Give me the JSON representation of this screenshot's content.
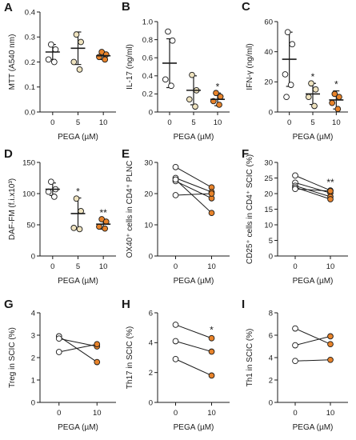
{
  "colors": {
    "c0": "#ffffff",
    "c5": "#efe3bf",
    "c10": "#e8832a",
    "stroke": "#1a1a1a"
  },
  "chart_data": [
    {
      "id": "A",
      "type": "scatter",
      "label": "A",
      "ylabel": "MTT (A540 nm)",
      "xlabel": "PEGA (µM)",
      "categories": [
        "0",
        "5",
        "10"
      ],
      "ylim": [
        0,
        0.4
      ],
      "yticks": [
        0,
        0.1,
        0.2,
        0.3,
        0.4
      ],
      "yticklabels": [
        "0.0",
        "0.1",
        "0.2",
        "0.3",
        "0.4"
      ],
      "groups": [
        {
          "x": "0",
          "mean": 0.24,
          "sd": 0.03,
          "points": [
            0.27,
            0.25,
            0.21,
            0.2
          ]
        },
        {
          "x": "5",
          "mean": 0.255,
          "sd": 0.065,
          "points": [
            0.31,
            0.28,
            0.2,
            0.17
          ]
        },
        {
          "x": "10",
          "mean": 0.225,
          "sd": 0.015,
          "points": [
            0.24,
            0.23,
            0.22,
            0.21
          ]
        }
      ],
      "stars": [
        "",
        "",
        ""
      ]
    },
    {
      "id": "B",
      "type": "scatter",
      "label": "B",
      "ylabel": "IL-17 (ng/ml)",
      "xlabel": "PEGA (µM)",
      "categories": [
        "0",
        "5",
        "10"
      ],
      "ylim": [
        0,
        1.0
      ],
      "yticks": [
        0,
        0.2,
        0.4,
        0.6,
        0.8,
        1.0
      ],
      "yticklabels": [
        "0",
        "0.2",
        "0.4",
        "0.6",
        "0.8",
        "1.0"
      ],
      "groups": [
        {
          "x": "0",
          "mean": 0.54,
          "sd": 0.27,
          "points": [
            0.89,
            0.79,
            0.36,
            0.29
          ]
        },
        {
          "x": "5",
          "mean": 0.24,
          "sd": 0.16,
          "points": [
            0.41,
            0.24,
            0.14,
            0.06
          ]
        },
        {
          "x": "10",
          "mean": 0.14,
          "sd": 0.07,
          "points": [
            0.21,
            0.17,
            0.12,
            0.08
          ]
        }
      ],
      "stars": [
        "",
        "",
        "*"
      ]
    },
    {
      "id": "C",
      "type": "scatter",
      "label": "C",
      "ylabel": "IFN-γ (ng/ml)",
      "xlabel": "PEGA (µM)",
      "categories": [
        "0",
        "5",
        "10"
      ],
      "ylim": [
        0,
        60
      ],
      "yticks": [
        0,
        20,
        40,
        60
      ],
      "yticklabels": [
        "0",
        "20",
        "40",
        "60"
      ],
      "groups": [
        {
          "x": "0",
          "mean": 35,
          "sd": 18,
          "points": [
            53,
            45,
            25,
            18,
            10
          ]
        },
        {
          "x": "5",
          "mean": 12,
          "sd": 7,
          "points": [
            19,
            15,
            10,
            4
          ]
        },
        {
          "x": "10",
          "mean": 8,
          "sd": 6,
          "points": [
            12,
            10,
            6,
            2
          ]
        }
      ],
      "stars": [
        "",
        "*",
        "*"
      ]
    },
    {
      "id": "D",
      "type": "scatter",
      "label": "D",
      "ylabel": "DAF-FM (f.i.x10³)",
      "xlabel": "PEGA (µM)",
      "categories": [
        "0",
        "5",
        "10"
      ],
      "ylim": [
        0,
        150
      ],
      "yticks": [
        0,
        50,
        100,
        150
      ],
      "yticklabels": [
        "0",
        "50",
        "100",
        "150"
      ],
      "groups": [
        {
          "x": "0",
          "mean": 107,
          "sd": 10,
          "points": [
            119,
            107,
            103,
            95
          ]
        },
        {
          "x": "5",
          "mean": 68,
          "sd": 25,
          "points": [
            92,
            72,
            45,
            43
          ]
        },
        {
          "x": "10",
          "mean": 51,
          "sd": 8,
          "points": [
            59,
            55,
            47,
            44
          ]
        }
      ],
      "stars": [
        "",
        "*",
        "**"
      ]
    },
    {
      "id": "E",
      "type": "paired",
      "label": "E",
      "ylabel": "OX40⁺ cells in CD4⁺ PLNC",
      "xlabel": "PEGA (µM)",
      "categories": [
        "0",
        "10"
      ],
      "ylim": [
        0,
        30
      ],
      "yticks": [
        0,
        10,
        20,
        30
      ],
      "yticklabels": [
        "0",
        "10",
        "20",
        "30"
      ],
      "pairs": [
        [
          28.5,
          22
        ],
        [
          25,
          20.5
        ],
        [
          24,
          18.5
        ],
        [
          19.5,
          20
        ],
        [
          24.5,
          13.8
        ]
      ],
      "stars": [
        "",
        ""
      ]
    },
    {
      "id": "F",
      "type": "paired",
      "label": "F",
      "ylabel": "CD25⁺ cells in CD4⁺ SCIC (%)",
      "xlabel": "PEGA (µM)",
      "categories": [
        "0",
        "10"
      ],
      "ylim": [
        0,
        30
      ],
      "yticks": [
        0,
        5,
        10,
        15,
        20,
        25,
        30
      ],
      "yticklabels": [
        "0",
        "5",
        "10",
        "15",
        "20",
        "25",
        "30"
      ],
      "pairs": [
        [
          25.8,
          21
        ],
        [
          23.5,
          20.2
        ],
        [
          22.5,
          19
        ],
        [
          22,
          18.2
        ],
        [
          21.5,
          20.8
        ]
      ],
      "stars": [
        "",
        "**"
      ]
    },
    {
      "id": "G",
      "type": "paired",
      "label": "G",
      "ylabel": "Treg in SCIC (%)",
      "xlabel": "PEGA (µM)",
      "categories": [
        "0",
        "10"
      ],
      "ylim": [
        0,
        4
      ],
      "yticks": [
        0,
        1,
        2,
        3,
        4
      ],
      "yticklabels": [
        "0",
        "1",
        "2",
        "3",
        "4"
      ],
      "pairs": [
        [
          2.95,
          1.8
        ],
        [
          2.85,
          2.5
        ],
        [
          2.25,
          2.6
        ]
      ],
      "stars": [
        "",
        ""
      ]
    },
    {
      "id": "H",
      "type": "paired",
      "label": "H",
      "ylabel": "Th17 in SCIC (%)",
      "xlabel": "PEGA (µM)",
      "categories": [
        "0",
        "10"
      ],
      "ylim": [
        0,
        6
      ],
      "yticks": [
        0,
        2,
        4,
        6
      ],
      "yticklabels": [
        "0",
        "2",
        "4",
        "6"
      ],
      "pairs": [
        [
          5.2,
          4.3
        ],
        [
          4.1,
          3.4
        ],
        [
          2.9,
          1.8
        ]
      ],
      "stars": [
        "",
        "*"
      ]
    },
    {
      "id": "I",
      "type": "paired",
      "label": "I",
      "ylabel": "Th1 in SCIC (%)",
      "xlabel": "PEGA (µM)",
      "categories": [
        "0",
        "10"
      ],
      "ylim": [
        0,
        8
      ],
      "yticks": [
        0,
        2,
        4,
        6,
        8
      ],
      "yticklabels": [
        "0",
        "2",
        "4",
        "6",
        "8"
      ],
      "pairs": [
        [
          6.6,
          5.2
        ],
        [
          5.1,
          5.9
        ],
        [
          3.7,
          3.8
        ]
      ],
      "stars": [
        "",
        ""
      ]
    }
  ]
}
